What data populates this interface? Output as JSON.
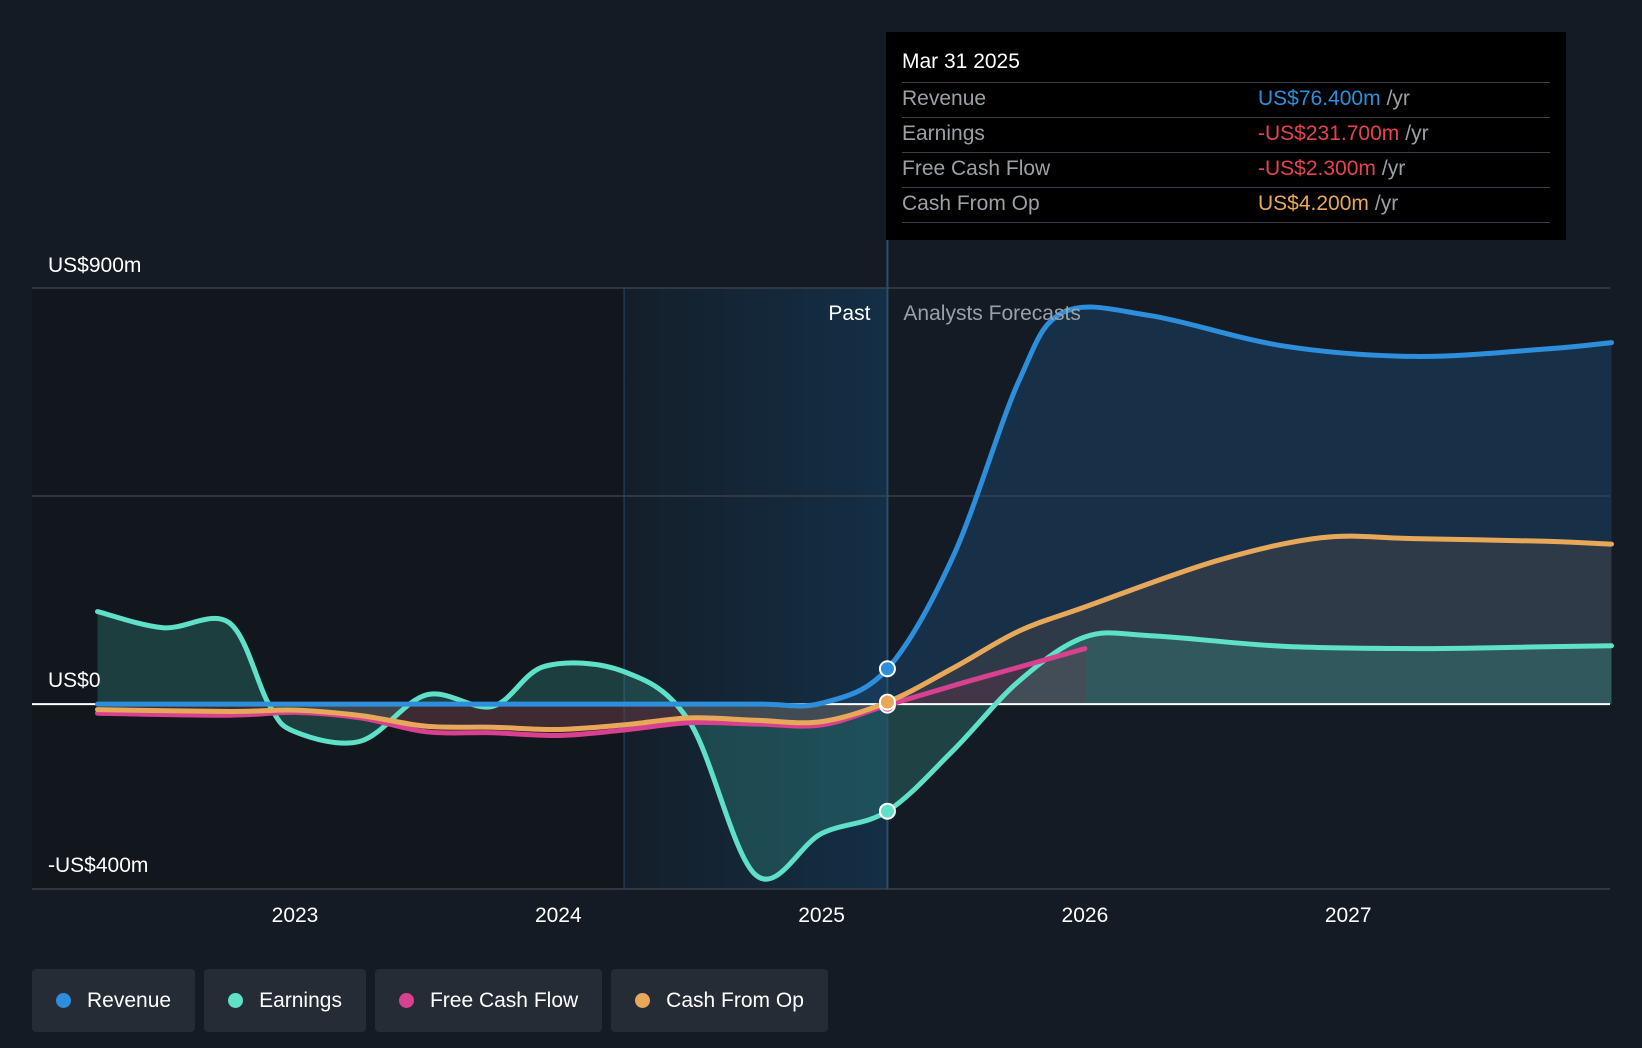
{
  "chart_data": {
    "type": "line",
    "y_axis_labels": [
      "US$900m",
      "US$0",
      "-US$400m"
    ],
    "ylim": [
      -400,
      900
    ],
    "x_ticks": [
      "2023",
      "2024",
      "2025",
      "2026",
      "2027"
    ],
    "past_label": "Past",
    "forecast_label": "Analysts Forecasts",
    "series": [
      {
        "name": "Revenue",
        "color": "#2d8fdc",
        "x": [
          2022.25,
          2022.75,
          2023.25,
          2023.75,
          2024.25,
          2024.75,
          2025.0,
          2025.25,
          2025.5,
          2025.75,
          2025.92,
          2026.25,
          2026.75,
          2027.25,
          2027.75,
          2028.0
        ],
        "values": [
          0,
          0,
          0,
          0,
          0,
          0,
          2,
          76.4,
          320,
          700,
          848,
          840,
          775,
          752,
          768,
          782
        ]
      },
      {
        "name": "Earnings",
        "color": "#5fe0c8",
        "x": [
          2022.25,
          2022.5,
          2022.75,
          2022.9,
          2023.0,
          2023.25,
          2023.5,
          2023.75,
          2023.95,
          2024.25,
          2024.5,
          2024.75,
          2025.0,
          2025.25,
          2025.5,
          2025.75,
          2026.0,
          2026.25,
          2026.75,
          2027.25,
          2027.75,
          2028.0
        ],
        "values": [
          200,
          165,
          176,
          0,
          -60,
          -80,
          20,
          -5,
          82,
          70,
          -40,
          -370,
          -280,
          -231.7,
          -100,
          50,
          145,
          148,
          125,
          120,
          124,
          126
        ]
      },
      {
        "name": "Free Cash Flow",
        "color": "#d7418f",
        "x": [
          2022.25,
          2022.75,
          2023.0,
          2023.25,
          2023.5,
          2023.75,
          2024.0,
          2024.25,
          2024.5,
          2024.75,
          2025.0,
          2025.25,
          2025.5,
          2025.75,
          2026.0
        ],
        "values": [
          -20,
          -24,
          -18,
          -30,
          -60,
          -62,
          -68,
          -56,
          -40,
          -43,
          -45,
          -2.3,
          40,
          80,
          120
        ]
      },
      {
        "name": "Cash From Op",
        "color": "#e8a85a",
        "x": [
          2022.25,
          2022.75,
          2023.0,
          2023.25,
          2023.5,
          2023.75,
          2024.0,
          2024.25,
          2024.5,
          2024.75,
          2025.0,
          2025.25,
          2025.5,
          2025.75,
          2026.0,
          2026.5,
          2026.9,
          2027.25,
          2027.75,
          2028.0
        ],
        "values": [
          -12,
          -16,
          -13,
          -25,
          -48,
          -50,
          -55,
          -45,
          -30,
          -35,
          -38,
          4.2,
          78,
          158,
          210,
          310,
          360,
          358,
          352,
          346
        ]
      }
    ],
    "tooltip": {
      "date": "Mar 31 2025",
      "unit": "/yr",
      "rows": [
        {
          "label": "Revenue",
          "value": "US$76.400m",
          "color": "#2d8fdc"
        },
        {
          "label": "Earnings",
          "value": "-US$231.700m",
          "color": "#e5444e"
        },
        {
          "label": "Free Cash Flow",
          "value": "-US$2.300m",
          "color": "#e5444e"
        },
        {
          "label": "Cash From Op",
          "value": "US$4.200m",
          "color": "#e8a85a"
        }
      ]
    },
    "legend": [
      "Revenue",
      "Earnings",
      "Free Cash Flow",
      "Cash From Op"
    ],
    "past_start": 2024.25,
    "today": 2025.25,
    "forecast_end": 2026.0
  }
}
